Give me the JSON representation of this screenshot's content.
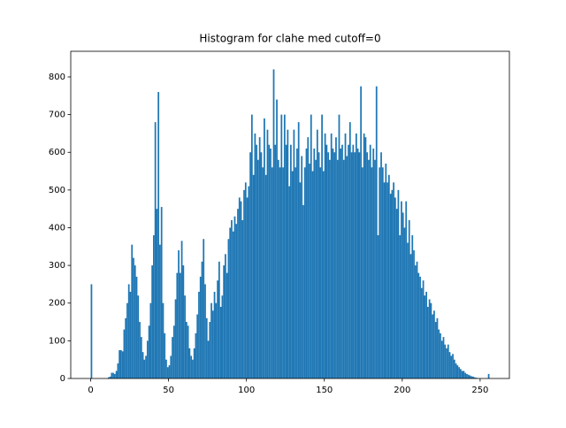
{
  "chart_data": {
    "type": "histogram",
    "title": "Histogram for clahe med cutoff=0",
    "color": "#1f77b4",
    "bins": [
      0,
      1,
      2,
      3,
      4,
      5,
      6,
      7,
      8,
      9,
      10,
      11,
      12,
      13,
      14,
      15,
      16,
      17,
      18,
      19,
      20,
      21,
      22,
      23,
      24,
      25,
      26,
      27,
      28,
      29,
      30,
      31,
      32,
      33,
      34,
      35,
      36,
      37,
      38,
      39,
      40,
      41,
      42,
      43,
      44,
      45,
      46,
      47,
      48,
      49,
      50,
      51,
      52,
      53,
      54,
      55,
      56,
      57,
      58,
      59,
      60,
      61,
      62,
      63,
      64,
      65,
      66,
      67,
      68,
      69,
      70,
      71,
      72,
      73,
      74,
      75,
      76,
      77,
      78,
      79,
      80,
      81,
      82,
      83,
      84,
      85,
      86,
      87,
      88,
      89,
      90,
      91,
      92,
      93,
      94,
      95,
      96,
      97,
      98,
      99,
      100,
      101,
      102,
      103,
      104,
      105,
      106,
      107,
      108,
      109,
      110,
      111,
      112,
      113,
      114,
      115,
      116,
      117,
      118,
      119,
      120,
      121,
      122,
      123,
      124,
      125,
      126,
      127,
      128,
      129,
      130,
      131,
      132,
      133,
      134,
      135,
      136,
      137,
      138,
      139,
      140,
      141,
      142,
      143,
      144,
      145,
      146,
      147,
      148,
      149,
      150,
      151,
      152,
      153,
      154,
      155,
      156,
      157,
      158,
      159,
      160,
      161,
      162,
      163,
      164,
      165,
      166,
      167,
      168,
      169,
      170,
      171,
      172,
      173,
      174,
      175,
      176,
      177,
      178,
      179,
      180,
      181,
      182,
      183,
      184,
      185,
      186,
      187,
      188,
      189,
      190,
      191,
      192,
      193,
      194,
      195,
      196,
      197,
      198,
      199,
      200,
      201,
      202,
      203,
      204,
      205,
      206,
      207,
      208,
      209,
      210,
      211,
      212,
      213,
      214,
      215,
      216,
      217,
      218,
      219,
      220,
      221,
      222,
      223,
      224,
      225,
      226,
      227,
      228,
      229,
      230,
      231,
      232,
      233,
      234,
      235,
      236,
      237,
      238,
      239,
      240,
      241,
      242,
      243,
      244,
      245,
      246,
      247,
      248,
      249,
      250,
      251,
      252,
      253,
      254,
      255,
      256
    ],
    "counts": [
      250,
      0,
      0,
      0,
      0,
      0,
      0,
      0,
      0,
      0,
      0,
      3,
      5,
      15,
      15,
      12,
      20,
      40,
      75,
      75,
      72,
      130,
      160,
      200,
      250,
      230,
      355,
      320,
      300,
      270,
      220,
      150,
      110,
      70,
      50,
      60,
      100,
      140,
      200,
      300,
      380,
      680,
      450,
      760,
      355,
      455,
      200,
      120,
      50,
      30,
      35,
      60,
      110,
      140,
      210,
      280,
      340,
      280,
      365,
      300,
      220,
      150,
      140,
      80,
      60,
      50,
      80,
      120,
      170,
      230,
      270,
      310,
      370,
      250,
      160,
      100,
      150,
      200,
      180,
      230,
      200,
      260,
      310,
      190,
      220,
      300,
      330,
      280,
      370,
      400,
      420,
      390,
      430,
      410,
      450,
      480,
      470,
      420,
      500,
      520,
      480,
      510,
      600,
      700,
      540,
      650,
      620,
      580,
      640,
      600,
      560,
      690,
      540,
      660,
      620,
      610,
      560,
      820,
      620,
      740,
      580,
      560,
      700,
      560,
      700,
      620,
      660,
      510,
      620,
      550,
      660,
      560,
      610,
      680,
      520,
      590,
      460,
      560,
      610,
      640,
      570,
      700,
      550,
      610,
      580,
      660,
      600,
      560,
      700,
      550,
      650,
      620,
      600,
      580,
      650,
      610,
      600,
      640,
      580,
      700,
      610,
      620,
      580,
      650,
      590,
      620,
      680,
      600,
      620,
      600,
      650,
      610,
      600,
      775,
      560,
      650,
      640,
      600,
      580,
      620,
      560,
      610,
      580,
      775,
      380,
      560,
      600,
      560,
      520,
      570,
      520,
      540,
      490,
      500,
      520,
      480,
      450,
      500,
      380,
      470,
      440,
      400,
      470,
      360,
      420,
      330,
      380,
      340,
      300,
      310,
      280,
      270,
      240,
      260,
      220,
      230,
      190,
      210,
      200,
      170,
      180,
      150,
      160,
      130,
      120,
      100,
      110,
      90,
      80,
      90,
      70,
      60,
      65,
      50,
      40,
      35,
      30,
      25,
      20,
      20,
      15,
      12,
      10,
      8,
      6,
      5,
      3,
      2,
      1,
      0,
      0,
      0,
      0,
      0,
      0,
      12
    ],
    "xlim": [
      -12.8,
      268.8
    ],
    "ylim": [
      0,
      868
    ],
    "xticks": [
      0,
      50,
      100,
      150,
      200,
      250
    ],
    "yticks": [
      0,
      100,
      200,
      300,
      400,
      500,
      600,
      700,
      800
    ]
  }
}
